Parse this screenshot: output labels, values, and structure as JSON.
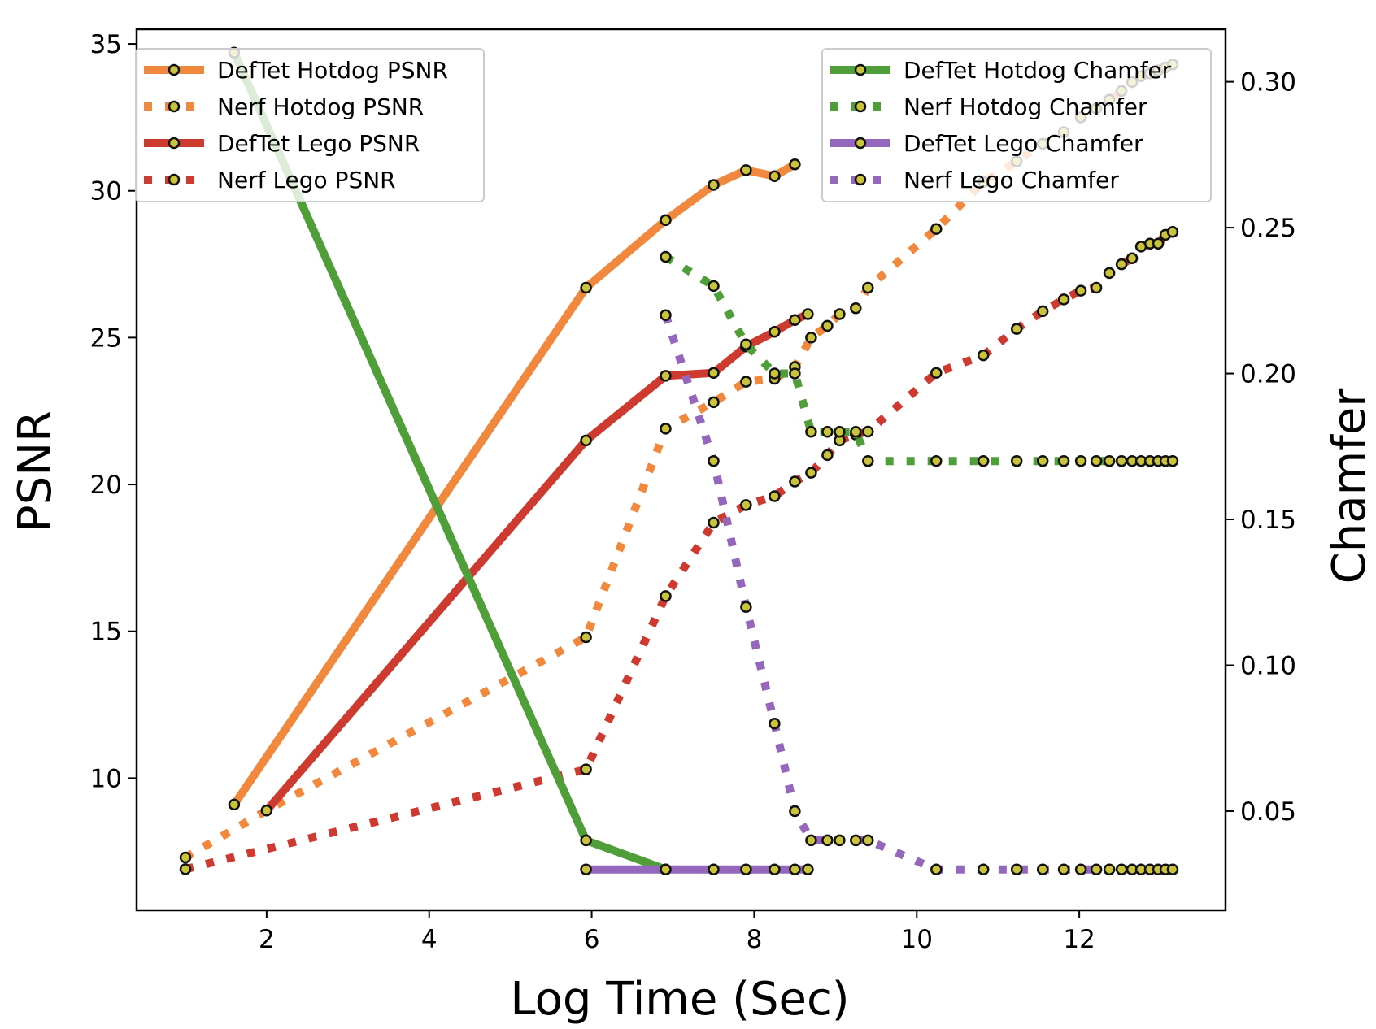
{
  "chart_data": {
    "type": "line",
    "xlabel": "Log Time (Sec)",
    "ylabel": "PSNR",
    "y2label": "Chamfer",
    "xlim": [
      0.4,
      13.8
    ],
    "ylim": [
      5.5,
      35.5
    ],
    "y2lim": [
      0.016,
      0.318
    ],
    "xticks": [
      2,
      4,
      6,
      8,
      10,
      12
    ],
    "yticks": [
      10,
      15,
      20,
      25,
      30,
      35
    ],
    "y2ticks": [
      0.05,
      0.1,
      0.15,
      0.2,
      0.25,
      0.3
    ],
    "xtick_labels": [
      "2",
      "4",
      "6",
      "8",
      "10",
      "12"
    ],
    "ytick_labels": [
      "10",
      "15",
      "20",
      "25",
      "30",
      "35"
    ],
    "y2tick_labels": [
      "0.05",
      "0.10",
      "0.15",
      "0.20",
      "0.25",
      "0.30"
    ],
    "grid": false,
    "legends": [
      {
        "placement": "upper-left",
        "entries": [
          "DefTet Hotdog PSNR",
          "Nerf Hotdog PSNR",
          "DefTet Lego PSNR",
          "Nerf Lego PSNR"
        ]
      },
      {
        "placement": "upper-right",
        "entries": [
          "DefTet Hotdog Chamfer",
          "Nerf Hotdog Chamfer",
          "DefTet Lego Chamfer",
          "Nerf Lego Chamfer"
        ]
      }
    ],
    "series": [
      {
        "name": "DefTet Hotdog PSNR",
        "axis": "left",
        "color": "#f0883e",
        "style": "solid",
        "x": [
          1.6,
          5.93,
          6.91,
          7.5,
          7.9,
          8.25,
          8.5
        ],
        "y": [
          9.1,
          26.7,
          29.0,
          30.2,
          30.7,
          30.5,
          30.9
        ]
      },
      {
        "name": "Nerf Hotdog PSNR",
        "axis": "left",
        "color": "#f0883e",
        "style": "dotted",
        "x": [
          1.0,
          2.0,
          5.93,
          6.91,
          7.5,
          7.9,
          8.25,
          8.5,
          8.7,
          8.9,
          9.05,
          9.25,
          9.4,
          10.24,
          10.82,
          11.23,
          11.55,
          11.81,
          12.02,
          12.21,
          12.37,
          12.52,
          12.65,
          12.76,
          12.87,
          12.97,
          13.06,
          13.15
        ],
        "y": [
          7.3,
          8.9,
          14.8,
          21.9,
          22.8,
          23.5,
          23.6,
          24.0,
          25.0,
          25.4,
          25.8,
          26.0,
          26.7,
          28.7,
          30.3,
          31.0,
          31.6,
          32.0,
          32.5,
          32.8,
          33.1,
          33.4,
          33.7,
          33.9,
          34.0,
          34.1,
          34.2,
          34.3
        ]
      },
      {
        "name": "DefTet Lego PSNR",
        "axis": "left",
        "color": "#cd3a30",
        "style": "solid",
        "x": [
          2.0,
          5.93,
          6.91,
          7.5,
          7.9,
          8.25,
          8.5,
          8.66
        ],
        "y": [
          8.9,
          21.5,
          23.7,
          23.8,
          24.7,
          25.2,
          25.6,
          25.8
        ]
      },
      {
        "name": "Nerf Lego PSNR",
        "axis": "left",
        "color": "#cd3a30",
        "style": "dotted",
        "x": [
          1.0,
          5.93,
          6.91,
          7.5,
          7.9,
          8.25,
          8.5,
          8.7,
          8.9,
          9.05,
          9.25,
          9.4,
          10.24,
          10.82,
          11.23,
          11.55,
          11.81,
          12.02,
          12.21,
          12.37,
          12.52,
          12.65,
          12.76,
          12.87,
          12.97,
          13.06,
          13.15
        ],
        "y": [
          6.9,
          10.3,
          16.2,
          18.7,
          19.3,
          19.6,
          20.1,
          20.4,
          21.0,
          21.5,
          21.7,
          21.8,
          23.8,
          24.4,
          25.3,
          25.9,
          26.3,
          26.6,
          26.7,
          27.2,
          27.5,
          27.7,
          28.1,
          28.2,
          28.2,
          28.5,
          28.6
        ]
      },
      {
        "name": "DefTet Hotdog Chamfer",
        "axis": "right",
        "color": "#4f9e3a",
        "style": "solid",
        "x": [
          1.6,
          5.93,
          6.91
        ],
        "y": [
          0.31,
          0.04,
          0.03
        ]
      },
      {
        "name": "Nerf Hotdog Chamfer",
        "axis": "right",
        "color": "#4f9e3a",
        "style": "dotted",
        "x": [
          6.91,
          7.5,
          7.9,
          8.25,
          8.5,
          8.7,
          8.9,
          9.05,
          9.25,
          9.4,
          10.24,
          10.82,
          11.23,
          11.55,
          11.81,
          12.02,
          12.21,
          12.37,
          12.52,
          12.65,
          12.76,
          12.87,
          12.97,
          13.06,
          13.15
        ],
        "y": [
          0.24,
          0.23,
          0.21,
          0.2,
          0.2,
          0.18,
          0.18,
          0.18,
          0.18,
          0.17,
          0.17,
          0.17,
          0.17,
          0.17,
          0.17,
          0.17,
          0.17,
          0.17,
          0.17,
          0.17,
          0.17,
          0.17,
          0.17,
          0.17,
          0.17
        ]
      },
      {
        "name": "DefTet Lego Chamfer",
        "axis": "right",
        "color": "#9467bd",
        "style": "solid",
        "x": [
          5.93,
          6.91,
          7.5,
          7.9,
          8.25,
          8.5,
          8.66
        ],
        "y": [
          0.03,
          0.03,
          0.03,
          0.03,
          0.03,
          0.03,
          0.03
        ]
      },
      {
        "name": "Nerf Lego Chamfer",
        "axis": "right",
        "color": "#9467bd",
        "style": "dotted",
        "x": [
          6.91,
          7.5,
          7.9,
          8.25,
          8.5,
          8.7,
          8.9,
          9.05,
          9.25,
          9.4,
          10.24,
          10.82,
          11.23,
          11.55,
          11.81,
          12.02,
          12.21,
          12.37,
          12.52,
          12.65,
          12.76,
          12.87,
          12.97,
          13.06,
          13.15
        ],
        "y": [
          0.22,
          0.17,
          0.12,
          0.08,
          0.05,
          0.04,
          0.04,
          0.04,
          0.04,
          0.04,
          0.03,
          0.03,
          0.03,
          0.03,
          0.03,
          0.03,
          0.03,
          0.03,
          0.03,
          0.03,
          0.03,
          0.03,
          0.03,
          0.03,
          0.03
        ]
      }
    ]
  }
}
